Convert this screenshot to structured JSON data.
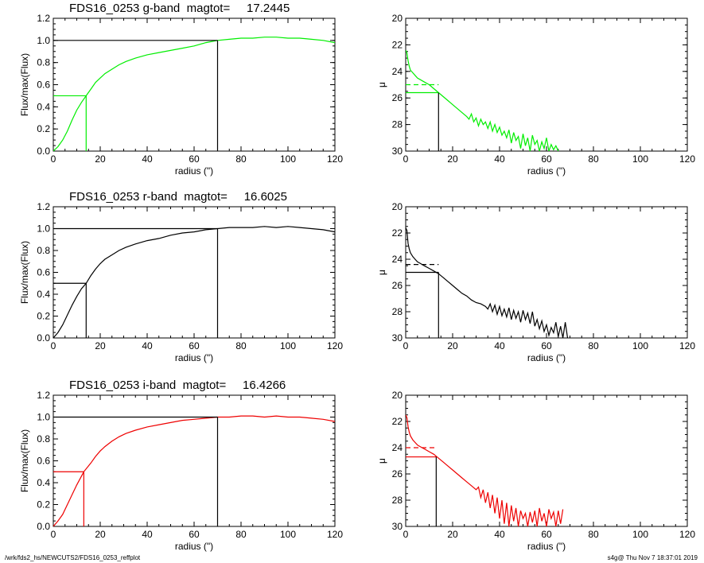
{
  "footer": {
    "path": "/wrk/fds2_hs/NEWCUTS2/FDS16_0253_reffplot",
    "stamp": "s4g@  Thu Nov  7 18:37:01 2019"
  },
  "chart_data": [
    {
      "type": "line",
      "band": "g",
      "color": "#00ee00",
      "title": "FDS16_0253 g-band  magtot=     17.2445",
      "xlabel": "radius (\")",
      "ylabel": "Flux/max(Flux)",
      "xlim": [
        0,
        120
      ],
      "ylim": [
        0.0,
        1.2
      ],
      "xticks": [
        0,
        20,
        40,
        60,
        80,
        100,
        120
      ],
      "yticks": [
        0.0,
        0.2,
        0.4,
        0.6,
        0.8,
        1.0,
        1.2
      ],
      "r_half": 14,
      "r_max": 70,
      "x": [
        0,
        2,
        4,
        6,
        8,
        10,
        12,
        14,
        16,
        18,
        20,
        22,
        25,
        28,
        31,
        35,
        40,
        45,
        50,
        55,
        60,
        65,
        70,
        75,
        80,
        85,
        90,
        95,
        100,
        105,
        110,
        115,
        120
      ],
      "y": [
        0.0,
        0.04,
        0.1,
        0.18,
        0.28,
        0.37,
        0.44,
        0.5,
        0.56,
        0.62,
        0.66,
        0.7,
        0.74,
        0.78,
        0.81,
        0.84,
        0.87,
        0.89,
        0.91,
        0.93,
        0.95,
        0.98,
        1.0,
        1.01,
        1.02,
        1.02,
        1.03,
        1.03,
        1.02,
        1.02,
        1.01,
        1.0,
        0.98
      ]
    },
    {
      "type": "line",
      "band": "g",
      "color": "#00ee00",
      "xlabel": "radius (\")",
      "ylabel": "μ",
      "xlim": [
        0,
        120
      ],
      "ylim": [
        30,
        20
      ],
      "xticks": [
        0,
        20,
        40,
        60,
        80,
        100,
        120
      ],
      "yticks": [
        20,
        22,
        24,
        26,
        28,
        30
      ],
      "r_half": 14,
      "mu_half": 25.6,
      "mu_dashed": 25.0,
      "x": [
        0,
        0.5,
        1,
        1.5,
        2,
        3,
        4,
        5,
        6,
        8,
        10,
        12,
        14,
        16,
        18,
        20,
        22,
        24,
        26,
        27,
        28,
        29,
        30,
        31,
        32,
        33,
        34,
        35,
        36,
        37,
        38,
        39,
        40,
        41,
        42,
        43,
        44,
        45,
        46,
        47,
        48,
        49,
        50,
        51,
        52,
        53,
        54,
        55,
        56,
        57,
        58,
        59,
        60,
        61,
        62,
        63,
        64,
        65
      ],
      "y": [
        22.4,
        22.6,
        23.2,
        23.6,
        23.9,
        24.1,
        24.3,
        24.5,
        24.6,
        24.8,
        25.0,
        25.3,
        25.6,
        25.9,
        26.2,
        26.5,
        26.8,
        27.1,
        27.4,
        27.6,
        27.2,
        27.8,
        27.5,
        28.1,
        27.6,
        28.0,
        27.8,
        28.3,
        27.8,
        28.5,
        28.0,
        28.6,
        28.2,
        28.8,
        28.5,
        29.0,
        28.4,
        29.4,
        28.6,
        29.2,
        28.9,
        29.8,
        28.7,
        29.6,
        29.0,
        30.0,
        28.8,
        29.5,
        29.2,
        30.0,
        29.3,
        29.8,
        29.0,
        30.0,
        29.5,
        29.9,
        29.6,
        30.0
      ]
    },
    {
      "type": "line",
      "band": "r",
      "color": "#000000",
      "title": "FDS16_0253 r-band  magtot=     16.6025",
      "xlabel": "radius (\")",
      "ylabel": "Flux/max(Flux)",
      "xlim": [
        0,
        120
      ],
      "ylim": [
        0.0,
        1.2
      ],
      "xticks": [
        0,
        20,
        40,
        60,
        80,
        100,
        120
      ],
      "yticks": [
        0.0,
        0.2,
        0.4,
        0.6,
        0.8,
        1.0,
        1.2
      ],
      "r_half": 14,
      "r_max": 70,
      "x": [
        0,
        2,
        4,
        6,
        8,
        10,
        12,
        14,
        16,
        18,
        20,
        22,
        25,
        28,
        31,
        35,
        40,
        45,
        50,
        55,
        60,
        65,
        70,
        75,
        80,
        85,
        90,
        95,
        100,
        105,
        110,
        115,
        120
      ],
      "y": [
        0.0,
        0.05,
        0.12,
        0.21,
        0.3,
        0.38,
        0.45,
        0.5,
        0.57,
        0.63,
        0.68,
        0.72,
        0.76,
        0.8,
        0.83,
        0.86,
        0.89,
        0.91,
        0.94,
        0.96,
        0.97,
        0.99,
        1.0,
        1.01,
        1.01,
        1.01,
        1.02,
        1.01,
        1.02,
        1.01,
        1.0,
        0.99,
        0.97
      ]
    },
    {
      "type": "line",
      "band": "r",
      "color": "#000000",
      "xlabel": "radius (\")",
      "ylabel": "μ",
      "xlim": [
        0,
        120
      ],
      "ylim": [
        30,
        20
      ],
      "xticks": [
        0,
        20,
        40,
        60,
        80,
        100,
        120
      ],
      "yticks": [
        20,
        22,
        24,
        26,
        28,
        30
      ],
      "r_half": 14,
      "mu_half": 25.0,
      "mu_dashed": 24.4,
      "x": [
        0,
        0.5,
        1,
        1.5,
        2,
        3,
        4,
        5,
        6,
        8,
        10,
        12,
        14,
        16,
        18,
        20,
        22,
        24,
        26,
        28,
        30,
        32,
        34,
        35,
        36,
        37,
        38,
        39,
        40,
        41,
        42,
        43,
        44,
        45,
        46,
        47,
        48,
        49,
        50,
        51,
        52,
        53,
        54,
        55,
        56,
        57,
        58,
        59,
        60,
        61,
        62,
        63,
        64,
        65,
        66,
        67,
        68,
        69
      ],
      "y": [
        21.6,
        21.8,
        22.8,
        23.2,
        23.5,
        23.8,
        24.0,
        24.2,
        24.3,
        24.5,
        24.7,
        24.9,
        25.1,
        25.4,
        25.7,
        26.0,
        26.3,
        26.6,
        26.8,
        27.1,
        27.3,
        27.4,
        27.6,
        27.8,
        27.4,
        28.0,
        27.5,
        28.2,
        27.6,
        28.3,
        27.8,
        28.4,
        27.7,
        28.6,
        27.9,
        28.5,
        28.0,
        28.8,
        27.9,
        28.6,
        28.1,
        28.9,
        28.0,
        29.1,
        28.6,
        29.3,
        28.7,
        29.5,
        29.0,
        29.8,
        29.2,
        29.6,
        28.8,
        29.9,
        29.1,
        30.0,
        28.8,
        30.0
      ]
    },
    {
      "type": "line",
      "band": "i",
      "color": "#ee0000",
      "title": "FDS16_0253 i-band  magtot=     16.4266",
      "xlabel": "radius (\")",
      "ylabel": "Flux/max(Flux)",
      "xlim": [
        0,
        120
      ],
      "ylim": [
        0.0,
        1.2
      ],
      "xticks": [
        0,
        20,
        40,
        60,
        80,
        100,
        120
      ],
      "yticks": [
        0.0,
        0.2,
        0.4,
        0.6,
        0.8,
        1.0,
        1.2
      ],
      "r_half": 13,
      "r_max": 70,
      "x": [
        0,
        2,
        4,
        6,
        8,
        10,
        12,
        13,
        16,
        18,
        20,
        22,
        25,
        28,
        31,
        35,
        40,
        45,
        50,
        55,
        60,
        65,
        70,
        75,
        80,
        85,
        90,
        95,
        100,
        105,
        110,
        115,
        120
      ],
      "y": [
        0.0,
        0.05,
        0.11,
        0.2,
        0.29,
        0.38,
        0.46,
        0.5,
        0.58,
        0.64,
        0.69,
        0.73,
        0.78,
        0.82,
        0.85,
        0.88,
        0.91,
        0.93,
        0.95,
        0.97,
        0.98,
        0.99,
        1.0,
        1.0,
        1.01,
        1.01,
        1.0,
        1.01,
        1.0,
        1.0,
        0.99,
        0.98,
        0.96
      ]
    },
    {
      "type": "line",
      "band": "i",
      "color": "#ee0000",
      "xlabel": "radius (\")",
      "ylabel": "μ",
      "xlim": [
        0,
        120
      ],
      "ylim": [
        30,
        20
      ],
      "xticks": [
        0,
        20,
        40,
        60,
        80,
        100,
        120
      ],
      "yticks": [
        20,
        22,
        24,
        26,
        28,
        30
      ],
      "r_half": 13,
      "mu_half": 24.7,
      "mu_dashed": 24.0,
      "x": [
        0,
        0.5,
        1,
        1.5,
        2,
        3,
        4,
        5,
        6,
        8,
        10,
        12,
        14,
        16,
        18,
        20,
        22,
        24,
        26,
        28,
        30,
        31,
        32,
        33,
        34,
        35,
        36,
        37,
        38,
        39,
        40,
        41,
        42,
        43,
        44,
        45,
        46,
        47,
        48,
        49,
        50,
        51,
        52,
        53,
        54,
        55,
        56,
        57,
        58,
        59,
        60,
        61,
        62,
        63,
        64,
        65,
        66,
        67
      ],
      "y": [
        21.5,
        21.7,
        22.4,
        22.8,
        23.1,
        23.4,
        23.6,
        23.8,
        23.9,
        24.1,
        24.3,
        24.5,
        24.8,
        25.1,
        25.4,
        25.7,
        26.0,
        26.3,
        26.6,
        26.9,
        27.2,
        27.0,
        27.8,
        27.2,
        28.2,
        27.4,
        28.6,
        27.6,
        29.0,
        27.8,
        29.4,
        28.0,
        29.8,
        28.2,
        30.0,
        28.4,
        29.6,
        28.6,
        30.0,
        28.8,
        29.4,
        29.0,
        30.0,
        28.9,
        29.7,
        28.8,
        30.0,
        28.6,
        29.6,
        29.0,
        30.0,
        28.7,
        29.4,
        28.9,
        30.0,
        28.8,
        29.8,
        28.7
      ]
    }
  ]
}
